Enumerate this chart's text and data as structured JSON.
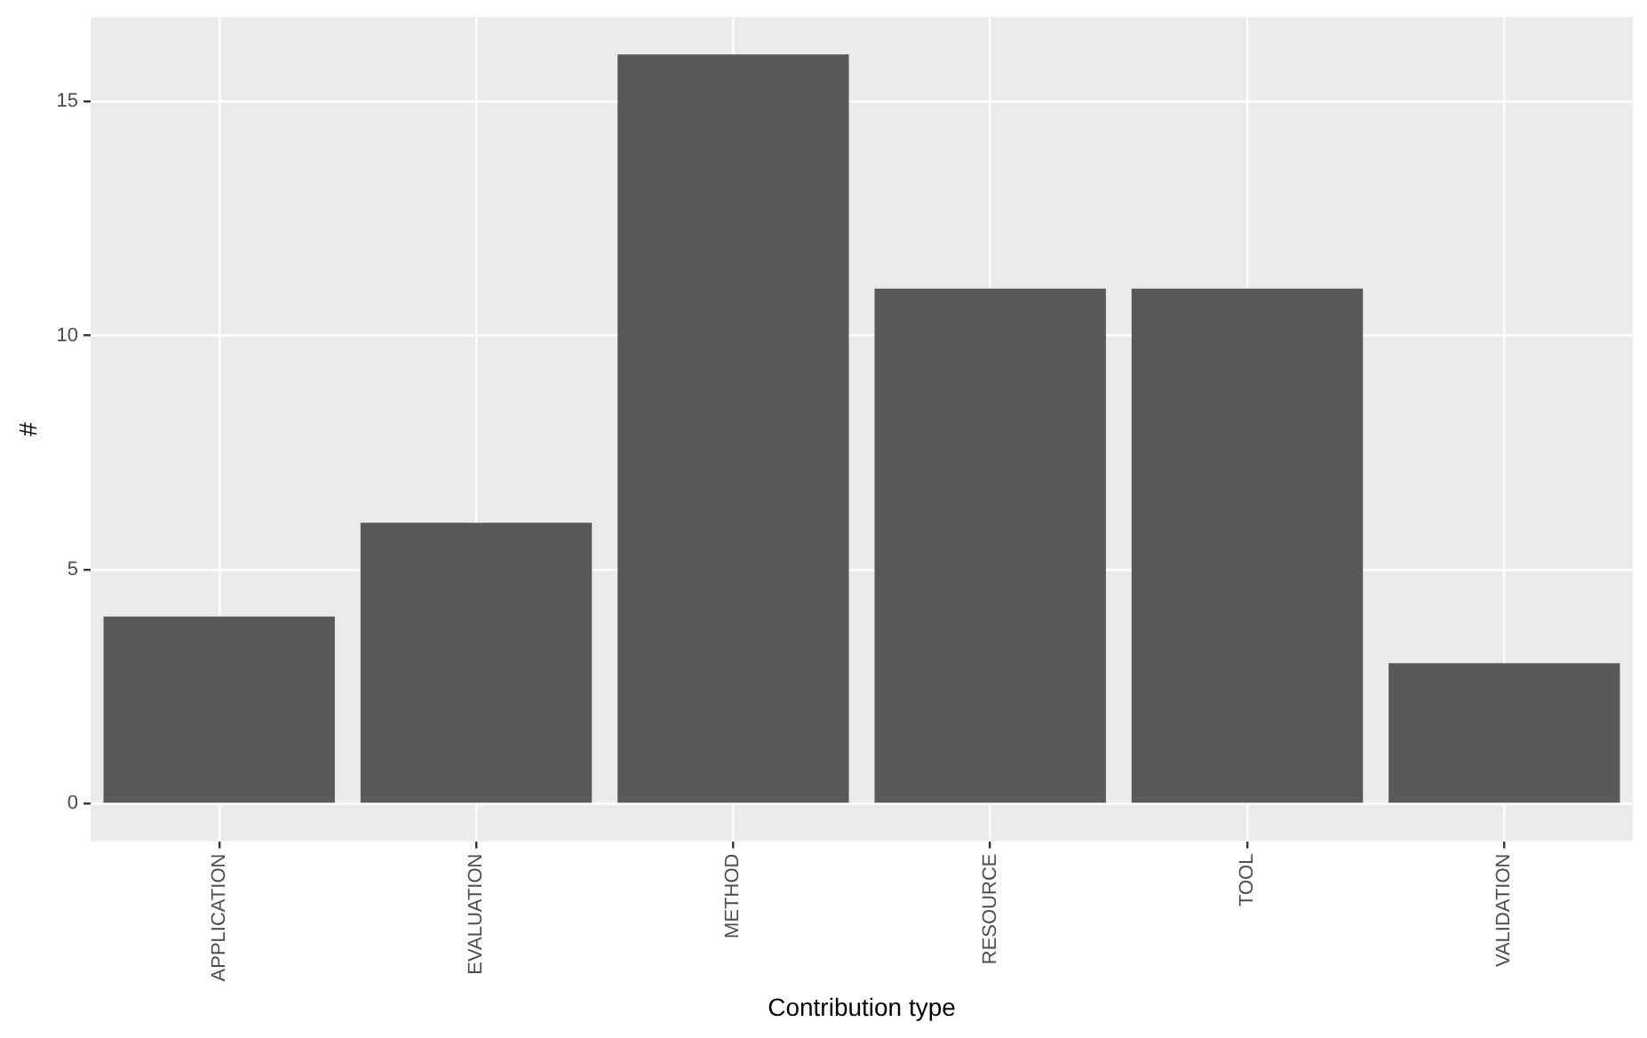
{
  "chart_data": {
    "type": "bar",
    "xlabel": "Contribution type",
    "ylabel": "#",
    "categories": [
      "APPLICATION",
      "EVALUATION",
      "METHOD",
      "RESOURCE",
      "TOOL",
      "VALIDATION"
    ],
    "values": [
      4,
      6,
      16,
      11,
      11,
      3
    ],
    "color": "#595959",
    "ylim": [
      -0.8,
      16.8
    ],
    "yticks": [
      0,
      5,
      10,
      15
    ],
    "grid": true
  }
}
